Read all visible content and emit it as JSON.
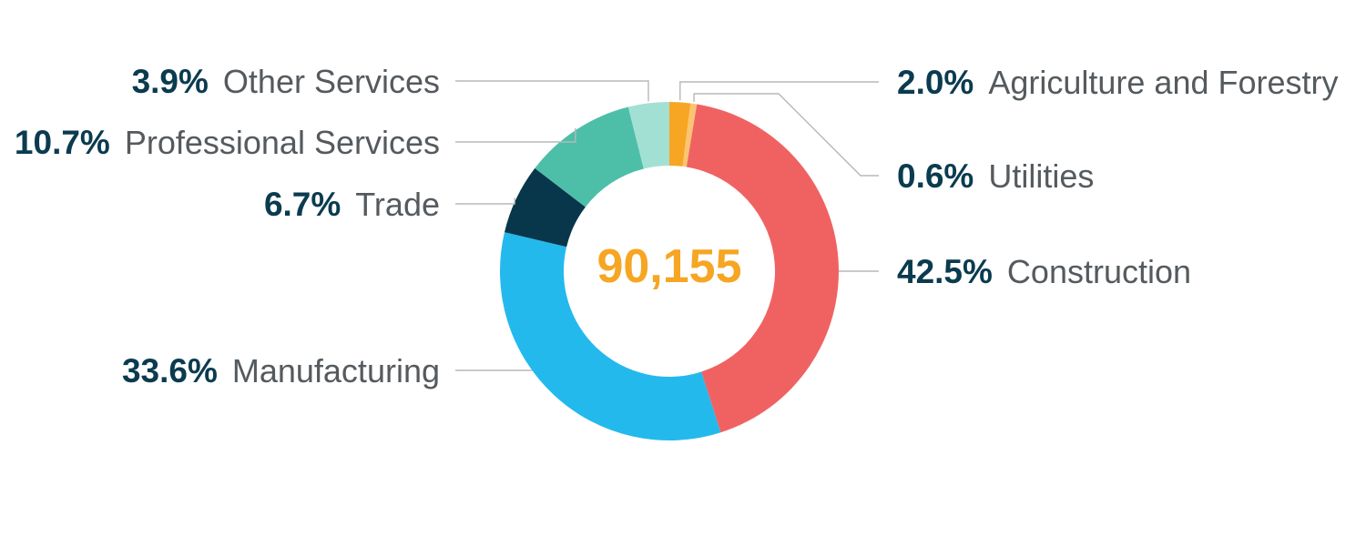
{
  "chart_data": {
    "type": "pie",
    "donut": true,
    "center_label": "90,155",
    "center_color": "#f6a623",
    "slices": [
      {
        "category": "Agriculture and Forestry",
        "value": 2.0,
        "label": "2.0%",
        "color": "#f6a623"
      },
      {
        "category": "Utilities",
        "value": 0.6,
        "label": "0.6%",
        "color": "#fbc472"
      },
      {
        "category": "Construction",
        "value": 42.5,
        "label": "42.5%",
        "color": "#f06262"
      },
      {
        "category": "Manufacturing",
        "value": 33.6,
        "label": "33.6%",
        "color": "#24b9ec"
      },
      {
        "category": "Trade",
        "value": 6.7,
        "label": "6.7%",
        "color": "#08364a"
      },
      {
        "category": "Professional Services",
        "value": 10.7,
        "label": "10.7%",
        "color": "#4dbfa8"
      },
      {
        "category": "Other Services",
        "value": 3.9,
        "label": "3.9%",
        "color": "#a3e0d4"
      }
    ],
    "title": "",
    "legend": "none"
  }
}
